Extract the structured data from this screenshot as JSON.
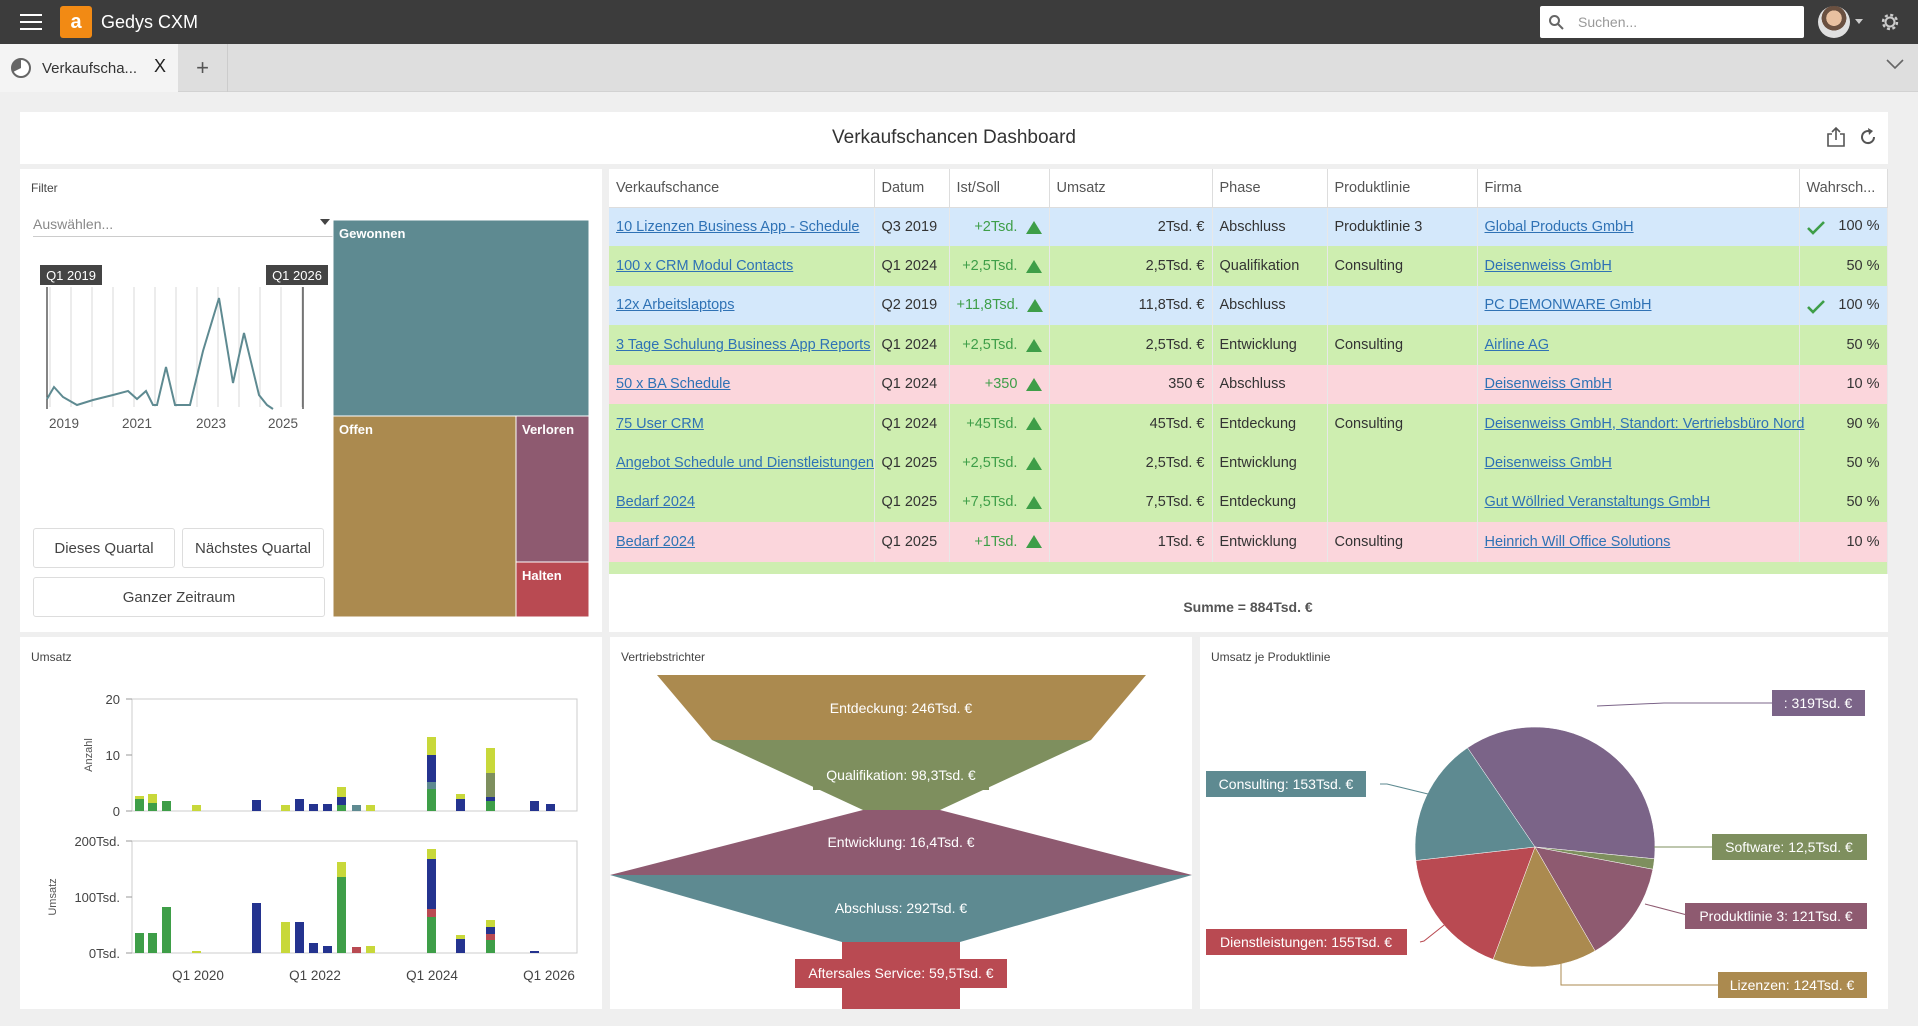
{
  "app": {
    "title": "Gedys CXM",
    "logo_letter": "a",
    "search_placeholder": "Suchen..."
  },
  "tabs": [
    {
      "label": "Verkaufscha...",
      "close": "X"
    }
  ],
  "add_tab": "+",
  "dashboard": {
    "title": "Verkaufschancen Dashboard"
  },
  "filter": {
    "title": "Filter",
    "select_placeholder": "Auswählen...",
    "range_start": "Q1 2019",
    "range_end": "Q1 2026",
    "years": [
      "2019",
      "2021",
      "2023",
      "2025"
    ],
    "btn_this_quarter": "Dieses Quartal",
    "btn_next_quarter": "Nächstes Quartal",
    "btn_all": "Ganzer Zeitraum",
    "treemap": [
      {
        "label": "Gewonnen",
        "color": "#5e8a91"
      },
      {
        "label": "Offen",
        "color": "#ab8a4f"
      },
      {
        "label": "Verloren",
        "color": "#8e5a70"
      },
      {
        "label": "Halten",
        "color": "#b94a52"
      }
    ]
  },
  "grid": {
    "columns": [
      "Verkaufschance",
      "Datum",
      "Ist/Soll",
      "Umsatz",
      "Phase",
      "Produktlinie",
      "Firma",
      "Wahrsch..."
    ],
    "rows": [
      {
        "name": "10 Lizenzen Business App - Schedule",
        "date": "Q3 2019",
        "delta": "+2Tsd.",
        "umsatz": "2Tsd. €",
        "phase": "Abschluss",
        "pl": "Produktlinie 3",
        "firma": "Global Products GmbH",
        "won": true,
        "prob": "100 %",
        "bg": "blue"
      },
      {
        "name": "100 x CRM Modul Contacts",
        "date": "Q1 2024",
        "delta": "+2,5Tsd.",
        "umsatz": "2,5Tsd. €",
        "phase": "Qualifikation",
        "pl": "Consulting",
        "firma": "Deisenweiss GmbH",
        "won": false,
        "prob": "50 %",
        "bg": "green"
      },
      {
        "name": "12x Arbeitslaptops",
        "date": "Q2 2019",
        "delta": "+11,8Tsd.",
        "umsatz": "11,8Tsd. €",
        "phase": "Abschluss",
        "pl": "",
        "firma": "PC DEMONWARE GmbH",
        "won": true,
        "prob": "100 %",
        "bg": "blue"
      },
      {
        "name": "3 Tage Schulung Business App Reports",
        "date": "Q1 2024",
        "delta": "+2,5Tsd.",
        "umsatz": "2,5Tsd. €",
        "phase": "Entwicklung",
        "pl": "Consulting",
        "firma": "Airline AG",
        "won": false,
        "prob": "50 %",
        "bg": "green"
      },
      {
        "name": "50 x BA Schedule",
        "date": "Q1 2024",
        "delta": "+350",
        "umsatz": "350 €",
        "phase": "Abschluss",
        "pl": "",
        "firma": "Deisenweiss GmbH",
        "won": false,
        "prob": "10 %",
        "bg": "pink"
      },
      {
        "name": "75 User CRM",
        "date": "Q1 2024",
        "delta": "+45Tsd.",
        "umsatz": "45Tsd. €",
        "phase": "Entdeckung",
        "pl": "Consulting",
        "firma": "Deisenweiss GmbH, Standort: Vertriebsbüro Nord",
        "won": false,
        "prob": "90 %",
        "bg": "green"
      },
      {
        "name": "Angebot Schedule und Dienstleistungen",
        "date": "Q1 2025",
        "delta": "+2,5Tsd.",
        "umsatz": "2,5Tsd. €",
        "phase": "Entwicklung",
        "pl": "",
        "firma": "Deisenweiss GmbH",
        "won": false,
        "prob": "50 %",
        "bg": "green"
      },
      {
        "name": "Bedarf 2024",
        "date": "Q1 2025",
        "delta": "+7,5Tsd.",
        "umsatz": "7,5Tsd. €",
        "phase": "Entdeckung",
        "pl": "",
        "firma": "Gut Wöllried Veranstaltungs GmbH",
        "won": false,
        "prob": "50 %",
        "bg": "green"
      },
      {
        "name": "Bedarf 2024",
        "date": "Q1 2025",
        "delta": "+1Tsd.",
        "umsatz": "1Tsd. €",
        "phase": "Entwicklung",
        "pl": "Consulting",
        "firma": "Heinrich Will Office Solutions",
        "won": false,
        "prob": "10 %",
        "bg": "pink"
      }
    ],
    "sum": "Summe = 884Tsd. €"
  },
  "umsatz": {
    "title": "Umsatz",
    "top_ylabel": "Anzahl",
    "top_ticks": [
      "20",
      "10",
      "0"
    ],
    "bottom_ylabel": "Umsatz",
    "bottom_ticks": [
      "200Tsd.",
      "100Tsd.",
      "0Tsd."
    ],
    "x_ticks": [
      "Q1 2020",
      "Q1 2022",
      "Q1 2024",
      "Q1 2026"
    ]
  },
  "funnel": {
    "title": "Vertriebstrichter",
    "stages": [
      {
        "label": "Entdeckung: 246Tsd. €",
        "value": 246,
        "color": "#ab8a4f"
      },
      {
        "label": "Qualifikation: 98,3Tsd. €",
        "value": 98.3,
        "color": "#7e8f5e"
      },
      {
        "label": "Entwicklung: 16,4Tsd. €",
        "value": 16.4,
        "color": "#8e5a70"
      },
      {
        "label": "Abschluss: 292Tsd. €",
        "value": 292,
        "color": "#5e8a91"
      },
      {
        "label": "Aftersales Service: 59,5Tsd. €",
        "value": 59.5,
        "color": "#b94a52"
      }
    ]
  },
  "pie": {
    "title": "Umsatz je Produktlinie",
    "chart_data": {
      "type": "pie",
      "slices": [
        {
          "label": ": 319Tsd. €",
          "value": 319,
          "color": "#7b6488"
        },
        {
          "label": "Software: 12,5Tsd. €",
          "value": 12.5,
          "color": "#7e8f5e"
        },
        {
          "label": "Produktlinie 3: 121Tsd. €",
          "value": 121,
          "color": "#8e5a70"
        },
        {
          "label": "Lizenzen: 124Tsd. €",
          "value": 124,
          "color": "#ab8a4f"
        },
        {
          "label": "Dienstleistungen: 155Tsd. €",
          "value": 155,
          "color": "#b94a52"
        },
        {
          "label": "Consulting: 153Tsd. €",
          "value": 153,
          "color": "#5e8a91"
        }
      ]
    }
  }
}
